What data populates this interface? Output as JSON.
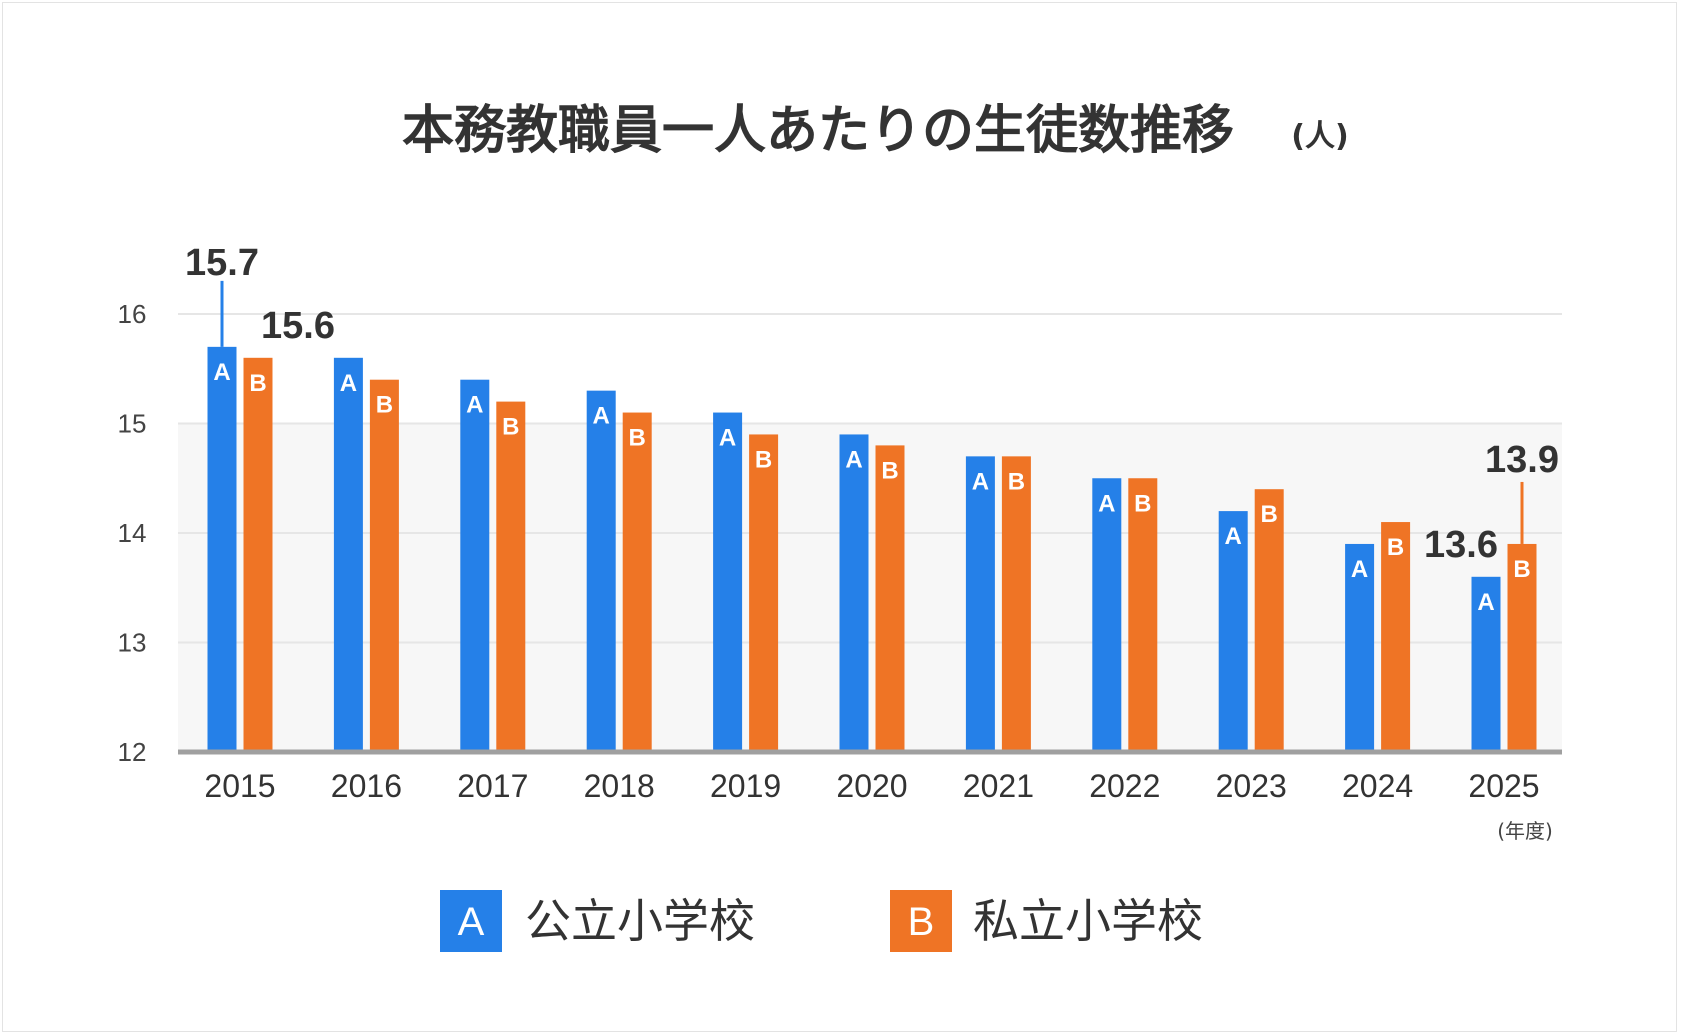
{
  "chart_data": {
    "type": "bar",
    "title": "本務教職員一人あたりの生徒数推移",
    "unit_label": "(人)",
    "x_unit_label": "(年度)",
    "categories": [
      "2015",
      "2016",
      "2017",
      "2018",
      "2019",
      "2020",
      "2021",
      "2022",
      "2023",
      "2024",
      "2025"
    ],
    "series": [
      {
        "name": "公立小学校",
        "letter": "A",
        "color": "#2580e8",
        "values": [
          15.7,
          15.6,
          15.4,
          15.3,
          15.1,
          14.9,
          14.7,
          14.5,
          14.2,
          13.9,
          13.6
        ]
      },
      {
        "name": "私立小学校",
        "letter": "B",
        "color": "#ef7425",
        "values": [
          15.6,
          15.4,
          15.2,
          15.1,
          14.9,
          14.8,
          14.7,
          14.5,
          14.4,
          14.1,
          13.9
        ]
      }
    ],
    "callouts": [
      {
        "series": 0,
        "category": 0,
        "label": "15.7"
      },
      {
        "series": 1,
        "category": 0,
        "label": "15.6"
      },
      {
        "series": 0,
        "category": 10,
        "label": "13.6"
      },
      {
        "series": 1,
        "category": 10,
        "label": "13.9"
      }
    ],
    "yticks": [
      "12",
      "13",
      "14",
      "15",
      "16"
    ],
    "ylim": [
      12,
      16.3
    ],
    "grid": true,
    "legend_position": "bottom-center"
  }
}
